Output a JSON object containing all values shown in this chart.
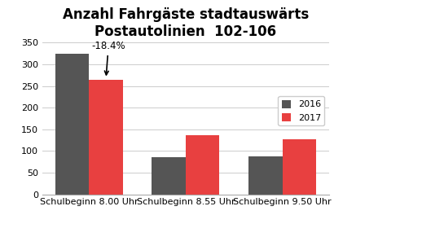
{
  "title_line1": "Anzahl Fahrgäste stadtauswärts",
  "title_line2": "Postautolinien  102-106",
  "categories": [
    "Schulbeginn 8.00 Uhr",
    "Schulbeginn 8.55 Uhr",
    "Schulbeginn 9.50 Uhr"
  ],
  "values_2016": [
    325,
    86,
    87
  ],
  "values_2017": [
    265,
    136,
    127
  ],
  "color_2016": "#555555",
  "color_2017": "#e84040",
  "ylim": [
    0,
    350
  ],
  "yticks": [
    0,
    50,
    100,
    150,
    200,
    250,
    300,
    350
  ],
  "legend_labels": [
    "2016",
    "2017"
  ],
  "annotation_text": "-18.4%",
  "bar_width": 0.35,
  "background_color": "#ffffff",
  "title_fontsize": 12,
  "tick_fontsize": 8,
  "legend_fontsize": 8
}
